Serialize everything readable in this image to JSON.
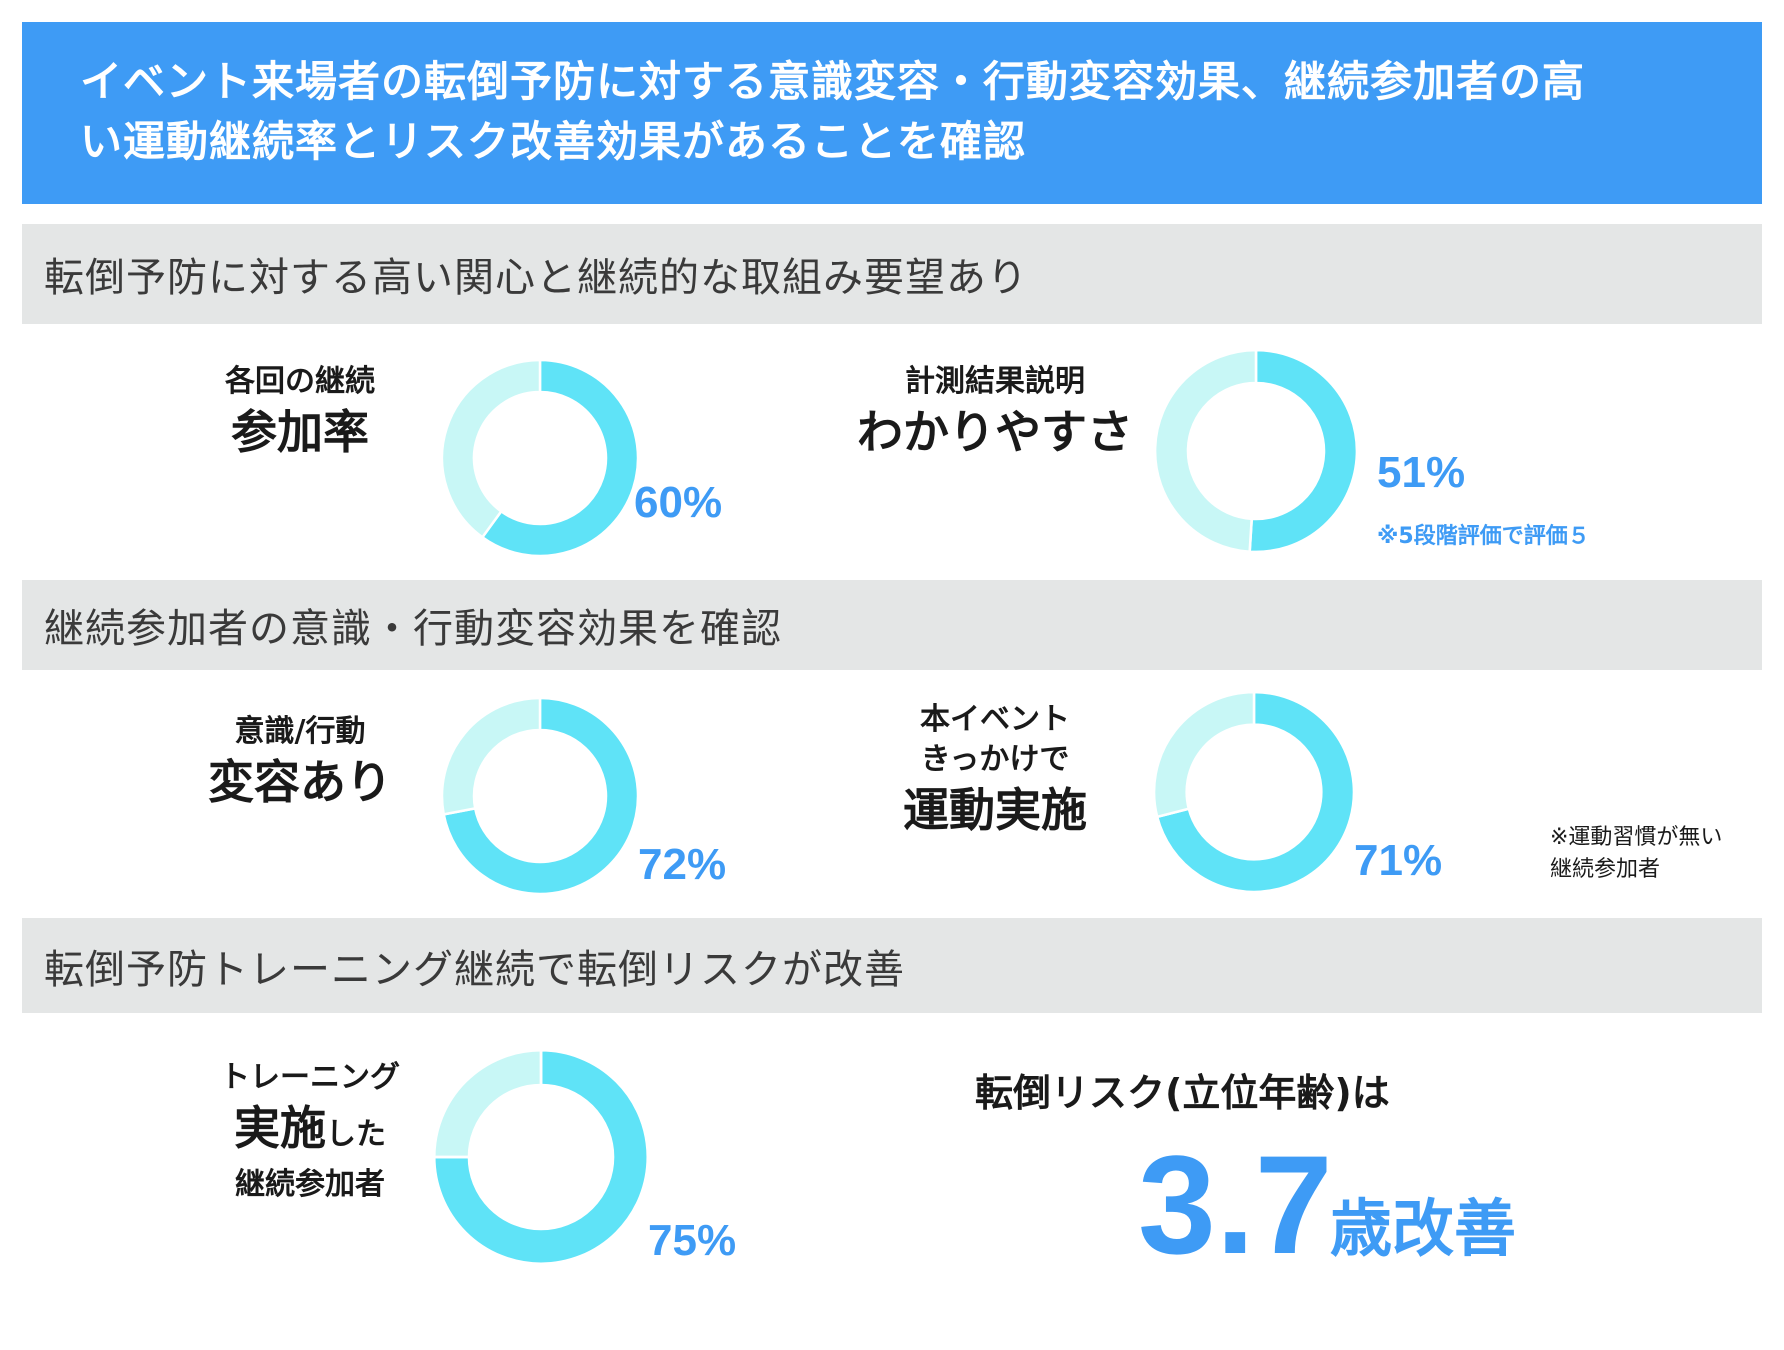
{
  "header": {
    "line1": "イベント来場者の転倒予防に対する意識変容・行動変容効果、継続参加者の高",
    "line2": "い運動継続率とリスク改善効果があることを確認"
  },
  "sections": [
    {
      "title": "転倒予防に対する高い関心と継続的な取組み要望あり"
    },
    {
      "title": "継続参加者の意識・行動変容効果を確認"
    },
    {
      "title": "転倒予防トレーニング継続で転倒リスクが改善"
    }
  ],
  "colors": {
    "accent": "#3e9bf5",
    "donut_fill": "#5fe3f7",
    "donut_rest": "#c8f7f6",
    "header_bg": "#3e9bf5",
    "section_bg": "#e4e6e6"
  },
  "chart_data": [
    {
      "type": "pie",
      "variant": "donut",
      "label_small": "各回の継続",
      "label_large": "参加率",
      "values": [
        60,
        40
      ],
      "value_label": "60%"
    },
    {
      "type": "pie",
      "variant": "donut",
      "label_small": "計測結果説明",
      "label_large": "わかりやすさ",
      "values": [
        51,
        49
      ],
      "value_label": "51%",
      "note": "※5段階評価で評価５"
    },
    {
      "type": "pie",
      "variant": "donut",
      "label_small": "意識/行動",
      "label_large": "変容あり",
      "values": [
        72,
        28
      ],
      "value_label": "72%"
    },
    {
      "type": "pie",
      "variant": "donut",
      "label_small": "本イベント",
      "label_small2": "きっかけで",
      "label_large": "運動実施",
      "values": [
        71,
        29
      ],
      "value_label": "71%",
      "note": "※運動習慣が無い継続参加者"
    },
    {
      "type": "pie",
      "variant": "donut",
      "label_small": "トレーニング",
      "label_large": "実施",
      "label_large_suffix": "した",
      "label_small2": "継続参加者",
      "values": [
        75,
        25
      ],
      "value_label": "75%"
    }
  ],
  "risk": {
    "title": "転倒リスク(立位年齢)は",
    "value": "3.7",
    "unit": "歳改善"
  }
}
